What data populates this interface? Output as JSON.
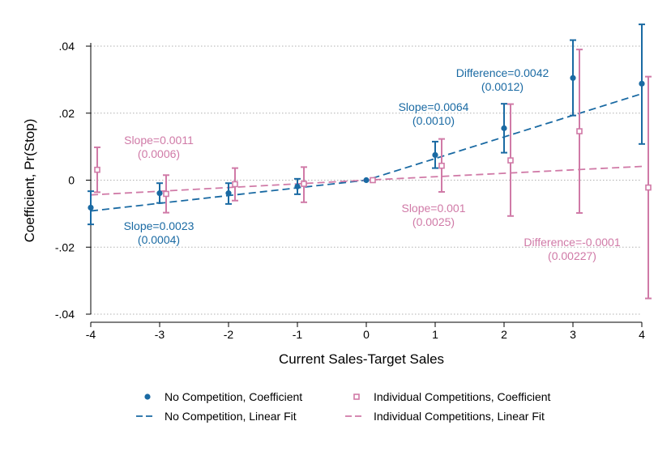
{
  "chart_data": {
    "type": "scatter",
    "xlabel": "Current Sales-Target Sales",
    "ylabel": "Coefficient, Pr(Stop)",
    "xlim": [
      -4,
      4
    ],
    "ylim": [
      -0.04,
      0.04
    ],
    "x_ticks": [
      -4,
      -3,
      -2,
      -1,
      0,
      1,
      2,
      3,
      4
    ],
    "x_tick_labels": [
      "-4",
      "-3",
      "-2",
      "-1",
      "0",
      "1",
      "2",
      "3",
      "4"
    ],
    "y_ticks": [
      -0.04,
      -0.02,
      0,
      0.02,
      0.04
    ],
    "y_tick_labels": [
      "-.04",
      "-.02",
      "0",
      ".02",
      ".04"
    ],
    "grid": "horizontal dotted",
    "legend_position": "bottom",
    "colors": {
      "no_competition": "#1a6aa3",
      "individual": "#d07aa7"
    },
    "series": [
      {
        "name": "No Competition, Coefficient",
        "kind": "points-with-ci",
        "x": [
          -4,
          -3,
          -2,
          -1,
          0,
          1,
          2,
          3,
          4
        ],
        "y": [
          -0.0082,
          -0.0039,
          -0.0039,
          -0.0019,
          0,
          0.0075,
          0.0155,
          0.0305,
          0.0288
        ],
        "ci_low": [
          -0.0132,
          -0.0068,
          -0.0071,
          -0.0042,
          0,
          0.0036,
          0.0082,
          0.0193,
          0.0108
        ],
        "ci_high": [
          -0.0033,
          -0.0009,
          -0.0009,
          0.0004,
          0,
          0.0115,
          0.0228,
          0.0418,
          0.0465
        ]
      },
      {
        "name": "Individual Competitions, Coefficient",
        "kind": "points-with-ci",
        "x": [
          -4,
          -3,
          -2,
          -1,
          0,
          1,
          2,
          3,
          4
        ],
        "y": [
          0.0031,
          -0.0041,
          -0.0012,
          -0.0011,
          0,
          0.0043,
          0.0059,
          0.0146,
          -0.0022
        ],
        "ci_low": [
          -0.0036,
          -0.0097,
          -0.0061,
          -0.0066,
          0,
          -0.0035,
          -0.0107,
          -0.0098,
          -0.0353
        ],
        "ci_high": [
          0.0098,
          0.0015,
          0.0036,
          0.0039,
          0,
          0.0123,
          0.0227,
          0.039,
          0.0309
        ]
      },
      {
        "name": "No Competition, Linear Fit",
        "kind": "dashed-line",
        "x": [
          -4,
          0,
          4
        ],
        "y": [
          -0.0092,
          0,
          0.0258
        ]
      },
      {
        "name": "Individual Competitions, Linear Fit",
        "kind": "dashed-line",
        "x": [
          -4,
          0,
          4
        ],
        "y": [
          -0.0044,
          0,
          0.0041
        ]
      }
    ],
    "annotations": [
      {
        "series": "no_competition",
        "lines": [
          "Difference=0.0042",
          "(0.0012)"
        ]
      },
      {
        "series": "no_competition",
        "lines": [
          "Slope=0.0064",
          "(0.0010)"
        ]
      },
      {
        "series": "individual",
        "lines": [
          "Slope=0.0011",
          "(0.0006)"
        ]
      },
      {
        "series": "no_competition",
        "lines": [
          "Slope=0.0023",
          "(0.0004)"
        ]
      },
      {
        "series": "individual",
        "lines": [
          "Slope=0.001",
          "(0.0025)"
        ]
      },
      {
        "series": "individual",
        "lines": [
          "Difference=-0.0001",
          "(0.00227)"
        ]
      }
    ],
    "legend": {
      "items": [
        {
          "label": "No Competition, Coefficient",
          "symbol": "dot",
          "series": "no_competition"
        },
        {
          "label": "Individual Competitions, Coefficient",
          "symbol": "square",
          "series": "individual"
        },
        {
          "label": "No Competition, Linear Fit",
          "symbol": "dash",
          "series": "no_competition"
        },
        {
          "label": "Individual Competitions, Linear Fit",
          "symbol": "dash",
          "series": "individual"
        }
      ]
    }
  }
}
